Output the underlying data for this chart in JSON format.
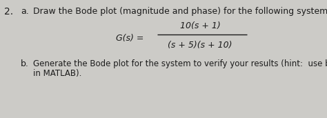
{
  "question_number": "2.",
  "part_a_label": "a.",
  "part_a_text": "Draw the Bode plot (magnitude and phase) for the following system.",
  "gs_label": "G(s) =",
  "numerator": "10(s + 1)",
  "denominator": "(s + 5)(s + 10)",
  "part_b_label": "b.",
  "part_b_line1": "Generate the Bode plot for the system to verify your results (hint:  use bode command",
  "part_b_line2": "in MATLAB).",
  "bg_color": "#cccbc7",
  "text_color": "#1c1c1c",
  "fs": 9.0,
  "fs_small": 8.5
}
